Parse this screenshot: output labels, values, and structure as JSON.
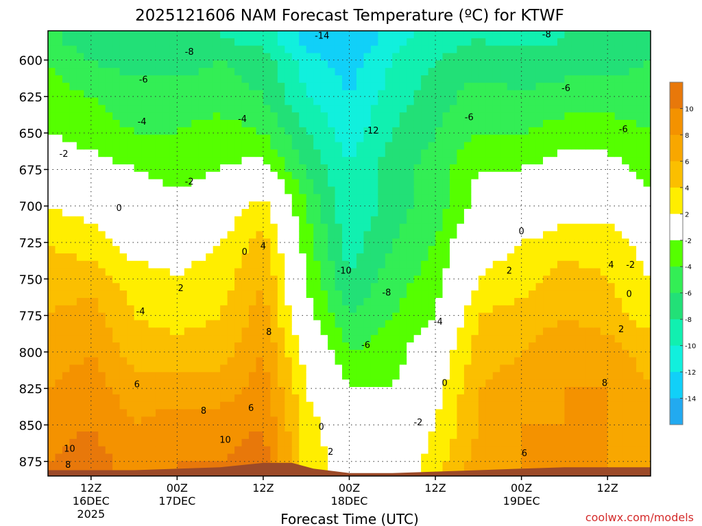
{
  "chart_data": {
    "type": "heatmap",
    "title": "2025121606 NAM Forecast Temperature (ºC) for KTWF",
    "xlabel": "Forecast Time (UTC)",
    "credit": "coolwx.com/models",
    "x_ticks": [
      {
        "hour": 6,
        "line1": "12Z",
        "line2": "16DEC",
        "line3": "2025"
      },
      {
        "hour": 18,
        "line1": "00Z",
        "line2": "17DEC",
        "line3": ""
      },
      {
        "hour": 30,
        "line1": "12Z",
        "line2": "",
        "line3": ""
      },
      {
        "hour": 42,
        "line1": "00Z",
        "line2": "18DEC",
        "line3": ""
      },
      {
        "hour": 54,
        "line1": "12Z",
        "line2": "",
        "line3": ""
      },
      {
        "hour": 66,
        "line1": "00Z",
        "line2": "19DEC",
        "line3": ""
      },
      {
        "hour": 78,
        "line1": "12Z",
        "line2": "",
        "line3": ""
      }
    ],
    "xlim": [
      0,
      84
    ],
    "y_ticks": [
      600,
      625,
      650,
      675,
      700,
      725,
      750,
      775,
      800,
      825,
      850,
      875
    ],
    "ylim": [
      580,
      885
    ],
    "ylabel": "",
    "grid": true,
    "colorbar": {
      "labels": [
        "10",
        "8",
        "6",
        "4",
        "2",
        "-2",
        "-4",
        "-6",
        "-8",
        "-10",
        "-12",
        "-14"
      ],
      "colors": [
        "#e8780a",
        "#f49200",
        "#f8a700",
        "#fbbf00",
        "#ffee00",
        "#ffffff",
        "#55ff00",
        "#33ee55",
        "#22e077",
        "#11f0b0",
        "#11f0dd",
        "#11d0f8",
        "#22aaf0"
      ]
    },
    "terrain_color": "#9c4a28",
    "columns": [
      {
        "hour": 0,
        "t": [
          -5,
          -4,
          -3,
          -2,
          0,
          2,
          4,
          5,
          6,
          7,
          8,
          9,
          10
        ]
      },
      {
        "hour": 6,
        "t": [
          -8,
          -6,
          -4,
          -3,
          -1,
          1,
          3,
          5,
          7,
          8,
          9,
          10,
          11
        ]
      },
      {
        "hour": 12,
        "t": [
          -8,
          -7,
          -5,
          -4,
          -2,
          0,
          1,
          3,
          4,
          5,
          7,
          8,
          9
        ]
      },
      {
        "hour": 18,
        "t": [
          -8,
          -7,
          -5,
          -4,
          -3,
          -1,
          1,
          2,
          3,
          5,
          7,
          9,
          10
        ]
      },
      {
        "hour": 24,
        "t": [
          -8,
          -6,
          -5,
          -3,
          -2,
          0,
          2,
          3,
          4,
          5,
          7,
          9,
          10
        ]
      },
      {
        "hour": 30,
        "t": [
          -9,
          -7,
          -6,
          -4,
          -1,
          3,
          5,
          6,
          7,
          8,
          9,
          10,
          11
        ]
      },
      {
        "hour": 36,
        "t": [
          -13,
          -11,
          -10,
          -8,
          -6,
          -4,
          -3,
          -2,
          -1,
          1,
          2,
          3,
          3
        ]
      },
      {
        "hour": 42,
        "t": [
          -14,
          -13,
          -12,
          -11,
          -10,
          -10,
          -9,
          -8,
          -6,
          -4,
          -2,
          0,
          1
        ]
      },
      {
        "hour": 48,
        "t": [
          -11,
          -10,
          -9,
          -8,
          -7,
          -7,
          -6,
          -5,
          -4,
          -3,
          -2,
          -1,
          0
        ]
      },
      {
        "hour": 54,
        "t": [
          -9,
          -8,
          -7,
          -6,
          -5,
          -5,
          -4,
          -3,
          -2,
          0,
          1,
          2,
          3
        ]
      },
      {
        "hour": 60,
        "t": [
          -8,
          -7,
          -5,
          -4,
          -2,
          -1,
          1,
          2,
          4,
          5,
          6,
          6,
          7
        ]
      },
      {
        "hour": 66,
        "t": [
          -9,
          -7,
          -6,
          -4,
          -2,
          0,
          2,
          3,
          5,
          6,
          7,
          8,
          8
        ]
      },
      {
        "hour": 72,
        "t": [
          -8,
          -7,
          -5,
          -3,
          -1,
          1,
          3,
          5,
          6,
          7,
          8,
          8,
          8
        ]
      },
      {
        "hour": 78,
        "t": [
          -8,
          -7,
          -5,
          -3,
          -1,
          1,
          3,
          4,
          5,
          7,
          8,
          8,
          8
        ]
      },
      {
        "hour": 84,
        "t": [
          -7,
          -6,
          -5,
          -4,
          -3,
          -1,
          1,
          2,
          3,
          5,
          6,
          6,
          6
        ]
      }
    ],
    "levels": [
      585,
      600,
      625,
      650,
      675,
      700,
      725,
      750,
      775,
      800,
      825,
      850,
      875
    ],
    "surface": [
      {
        "hour": 0,
        "p": 881
      },
      {
        "hour": 12,
        "p": 881
      },
      {
        "hour": 24,
        "p": 879
      },
      {
        "hour": 30,
        "p": 876
      },
      {
        "hour": 34,
        "p": 876
      },
      {
        "hour": 37,
        "p": 880
      },
      {
        "hour": 42,
        "p": 883
      },
      {
        "hour": 48,
        "p": 883
      },
      {
        "hour": 54,
        "p": 882
      },
      {
        "hour": 60,
        "p": 881
      },
      {
        "hour": 66,
        "p": 880
      },
      {
        "hour": 72,
        "p": 879
      },
      {
        "hour": 84,
        "p": 879
      }
    ],
    "contour_labels": [
      {
        "hour": 19.7,
        "p": 594,
        "text": "-8"
      },
      {
        "hour": 13.3,
        "p": 613,
        "text": "-6"
      },
      {
        "hour": 13.1,
        "p": 642,
        "text": "-4"
      },
      {
        "hour": 2.2,
        "p": 664,
        "text": "-2"
      },
      {
        "hour": 19.7,
        "p": 683,
        "text": "-2"
      },
      {
        "hour": 9.9,
        "p": 701,
        "text": "0"
      },
      {
        "hour": 27.1,
        "p": 640,
        "text": "-4"
      },
      {
        "hour": 27.4,
        "p": 731,
        "text": "0"
      },
      {
        "hour": 30.0,
        "p": 727,
        "text": "4"
      },
      {
        "hour": 18.5,
        "p": 756,
        "text": "2"
      },
      {
        "hour": 12.9,
        "p": 772,
        "text": "-4"
      },
      {
        "hour": 12.4,
        "p": 822,
        "text": "6"
      },
      {
        "hour": 21.7,
        "p": 840,
        "text": "8"
      },
      {
        "hour": 30.8,
        "p": 786,
        "text": "8"
      },
      {
        "hour": 28.3,
        "p": 838,
        "text": "6"
      },
      {
        "hour": 24.7,
        "p": 860,
        "text": "10"
      },
      {
        "hour": 3.0,
        "p": 866,
        "text": "10"
      },
      {
        "hour": 2.8,
        "p": 877,
        "text": "8"
      },
      {
        "hour": 38.2,
        "p": 583,
        "text": "-14"
      },
      {
        "hour": 45.1,
        "p": 648,
        "text": "-12"
      },
      {
        "hour": 41.3,
        "p": 744,
        "text": "-10"
      },
      {
        "hour": 47.2,
        "p": 759,
        "text": "-8"
      },
      {
        "hour": 44.3,
        "p": 795,
        "text": "-6"
      },
      {
        "hour": 54.4,
        "p": 779,
        "text": "-4"
      },
      {
        "hour": 51.6,
        "p": 848,
        "text": "-2"
      },
      {
        "hour": 38.1,
        "p": 851,
        "text": "0"
      },
      {
        "hour": 39.4,
        "p": 868,
        "text": "2"
      },
      {
        "hour": 55.3,
        "p": 821,
        "text": "0"
      },
      {
        "hour": 58.7,
        "p": 639,
        "text": "-6"
      },
      {
        "hour": 66.0,
        "p": 717,
        "text": "0"
      },
      {
        "hour": 64.3,
        "p": 744,
        "text": "2"
      },
      {
        "hour": 66.4,
        "p": 869,
        "text": "6"
      },
      {
        "hour": 69.5,
        "p": 582,
        "text": "-8"
      },
      {
        "hour": 72.2,
        "p": 619,
        "text": "-6"
      },
      {
        "hour": 80.2,
        "p": 647,
        "text": "-6"
      },
      {
        "hour": 78.5,
        "p": 740,
        "text": "4"
      },
      {
        "hour": 81.2,
        "p": 740,
        "text": "-2"
      },
      {
        "hour": 81.0,
        "p": 760,
        "text": "0"
      },
      {
        "hour": 79.9,
        "p": 784,
        "text": "2"
      },
      {
        "hour": 77.6,
        "p": 821,
        "text": "8"
      }
    ]
  }
}
